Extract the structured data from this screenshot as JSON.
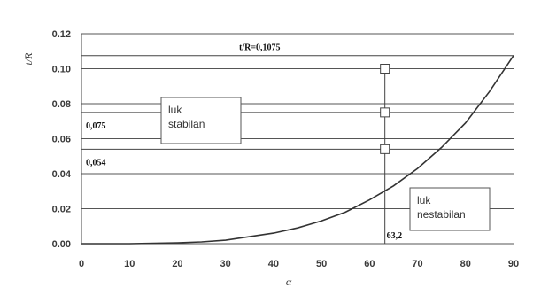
{
  "chart_data": {
    "type": "line",
    "xlabel": "α",
    "ylabel": "t/R",
    "xlim": [
      0,
      90
    ],
    "ylim": [
      0,
      0.12
    ],
    "x_ticks": [
      "0",
      "10",
      "20",
      "30",
      "40",
      "50",
      "60",
      "70",
      "80",
      "90"
    ],
    "y_ticks": [
      "0.00",
      "0.02",
      "0.04",
      "0.06",
      "0.08",
      "0.10",
      "0.12"
    ],
    "grid": "horizontal",
    "series": [
      {
        "x": [
          0,
          10,
          20,
          25,
          30,
          35,
          40,
          45,
          50,
          55,
          60,
          65,
          70,
          75,
          80,
          85,
          90
        ],
        "y": [
          0,
          0,
          0.0005,
          0.001,
          0.002,
          0.004,
          0.006,
          0.009,
          0.013,
          0.018,
          0.025,
          0.033,
          0.043,
          0.055,
          0.069,
          0.087,
          0.1075
        ]
      }
    ],
    "reference_lines": [
      {
        "y": 0.1075,
        "label": "t/R=0,1075"
      },
      {
        "y": 0.075,
        "label": "0,075"
      },
      {
        "y": 0.054,
        "label": "0,054"
      },
      {
        "x": 63.2,
        "label": "63,2"
      }
    ],
    "markers": [
      {
        "x": 63.2,
        "y": 0.1
      },
      {
        "x": 63.2,
        "y": 0.075
      },
      {
        "x": 63.2,
        "y": 0.054
      }
    ],
    "annotations": [
      {
        "lines": [
          "luk",
          "stabilan"
        ]
      },
      {
        "lines": [
          "luk",
          "nestabilan"
        ]
      }
    ]
  },
  "colors": {
    "grid": "#555555",
    "curve": "#333333",
    "text": "#3a3a3a"
  }
}
